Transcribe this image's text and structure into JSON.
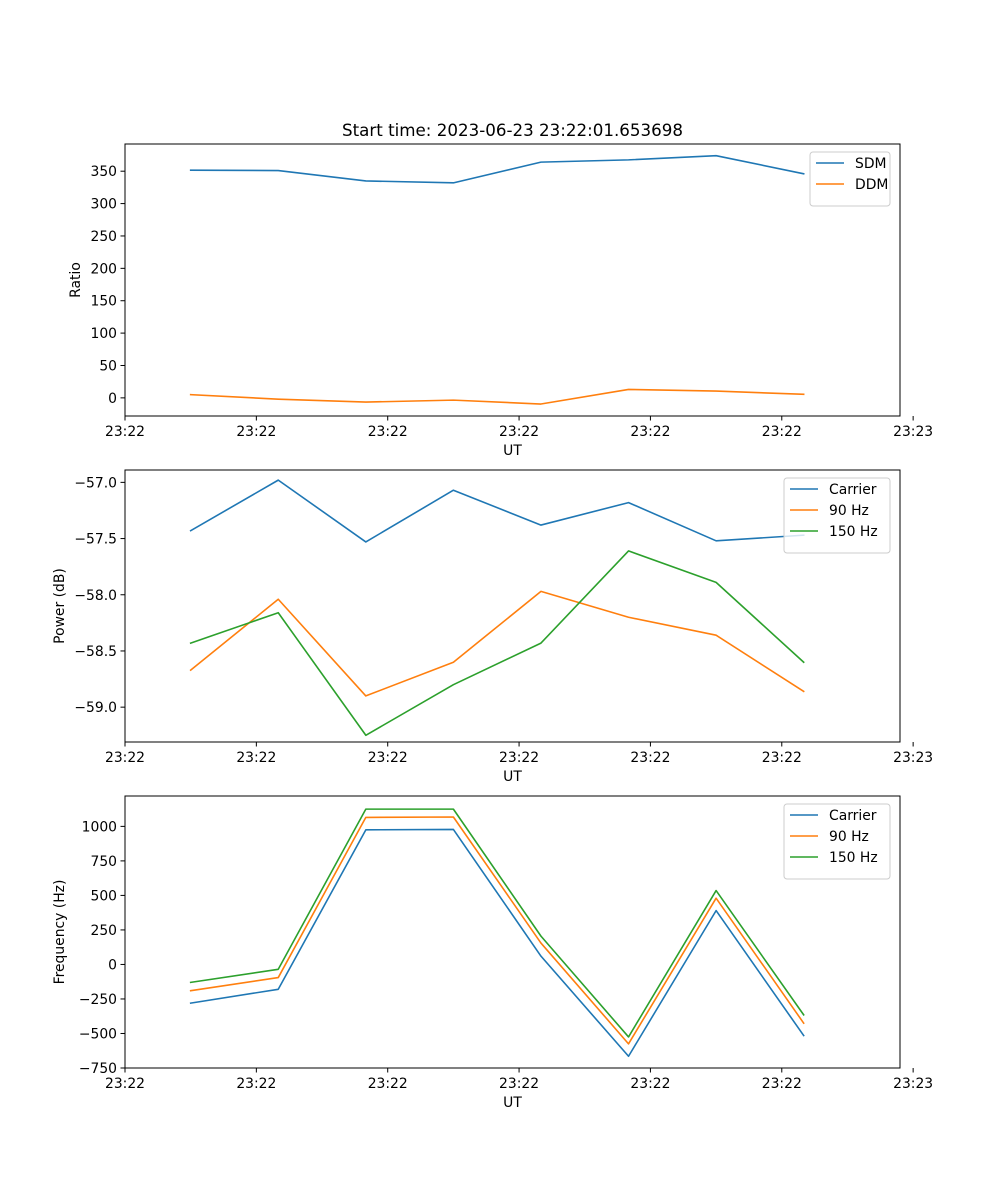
{
  "title": "Start time: 2023-06-23 23:22:01.653698",
  "colors": {
    "blue": "#1f77b4",
    "orange": "#ff7f0e",
    "green": "#2ca02c",
    "frame": "#000000",
    "legend_border": "#cccccc"
  },
  "chart_data": [
    {
      "type": "line",
      "xlabel": "UT",
      "ylabel": "Ratio",
      "xtick_labels": [
        "23:22",
        "23:22",
        "23:22",
        "23:22",
        "23:22",
        "23:22",
        "23:23"
      ],
      "x_points": [
        1,
        2,
        3,
        4,
        5,
        6,
        7,
        8
      ],
      "xlim": [
        0.25,
        9.1
      ],
      "xticks": [
        0.25,
        1.75,
        3.25,
        4.75,
        6.25,
        7.75,
        9.25
      ],
      "ylim": [
        -28,
        392
      ],
      "yticks": [
        0,
        50,
        100,
        150,
        200,
        250,
        300,
        350
      ],
      "ytick_labels": [
        "0",
        "50",
        "100",
        "150",
        "200",
        "250",
        "300",
        "350"
      ],
      "legend_position": "top-right",
      "series": [
        {
          "name": "SDM",
          "color": "#1f77b4",
          "values": [
            351.5,
            351,
            335,
            332,
            364,
            367.5,
            374,
            346
          ]
        },
        {
          "name": "DDM",
          "color": "#ff7f0e",
          "values": [
            5,
            -2,
            -6.5,
            -3.5,
            -9.5,
            13,
            10.5,
            5.5
          ]
        }
      ]
    },
    {
      "type": "line",
      "xlabel": "UT",
      "ylabel": "Power (dB)",
      "xtick_labels": [
        "23:22",
        "23:22",
        "23:22",
        "23:22",
        "23:22",
        "23:22",
        "23:23"
      ],
      "x_points": [
        1,
        2,
        3,
        4,
        5,
        6,
        7,
        8
      ],
      "xlim": [
        0.25,
        9.1
      ],
      "xticks": [
        0.25,
        1.75,
        3.25,
        4.75,
        6.25,
        7.75,
        9.25
      ],
      "ylim": [
        -59.31,
        -56.89
      ],
      "yticks": [
        -59.0,
        -58.5,
        -58.0,
        -57.5,
        -57.0
      ],
      "ytick_labels": [
        "−59.0",
        "−58.5",
        "−58.0",
        "−57.5",
        "−57.0"
      ],
      "legend_position": "top-right",
      "series": [
        {
          "name": "Carrier",
          "color": "#1f77b4",
          "values": [
            -57.43,
            -56.98,
            -57.53,
            -57.07,
            -57.38,
            -57.18,
            -57.52,
            -57.47
          ]
        },
        {
          "name": "90 Hz",
          "color": "#ff7f0e",
          "values": [
            -58.67,
            -58.04,
            -58.9,
            -58.6,
            -57.97,
            -58.2,
            -58.36,
            -58.86
          ]
        },
        {
          "name": "150 Hz",
          "color": "#2ca02c",
          "values": [
            -58.43,
            -58.16,
            -59.25,
            -58.8,
            -58.43,
            -57.61,
            -57.89,
            -58.6
          ]
        }
      ]
    },
    {
      "type": "line",
      "xlabel": "UT",
      "ylabel": "Frequency (Hz)",
      "xtick_labels": [
        "23:22",
        "23:22",
        "23:22",
        "23:22",
        "23:22",
        "23:22",
        "23:23"
      ],
      "x_points": [
        1,
        2,
        3,
        4,
        5,
        6,
        7,
        8
      ],
      "xlim": [
        0.25,
        9.1
      ],
      "xticks": [
        0.25,
        1.75,
        3.25,
        4.75,
        6.25,
        7.75,
        9.25
      ],
      "ylim": [
        -750,
        1220
      ],
      "yticks": [
        -750,
        -500,
        -250,
        0,
        250,
        500,
        750,
        1000
      ],
      "ytick_labels": [
        "−750",
        "−500",
        "−250",
        "0",
        "250",
        "500",
        "750",
        "1000"
      ],
      "legend_position": "top-right",
      "series": [
        {
          "name": "Carrier",
          "color": "#1f77b4",
          "values": [
            -280,
            -180,
            975,
            978,
            60,
            -665,
            390,
            -515
          ]
        },
        {
          "name": "90 Hz",
          "color": "#ff7f0e",
          "values": [
            -190,
            -95,
            1065,
            1068,
            155,
            -575,
            480,
            -425
          ]
        },
        {
          "name": "150 Hz",
          "color": "#2ca02c",
          "values": [
            -130,
            -35,
            1125,
            1125,
            205,
            -525,
            535,
            -365
          ]
        }
      ]
    }
  ]
}
